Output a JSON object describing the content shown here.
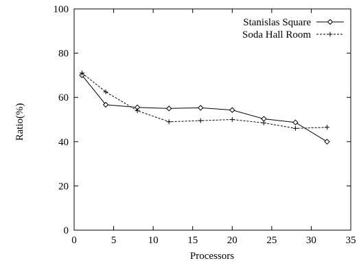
{
  "chart_data": {
    "type": "line",
    "title": "",
    "xlabel": "Processors",
    "ylabel": "Ratio(%)",
    "xlim": [
      0,
      35
    ],
    "ylim": [
      0,
      100
    ],
    "xticks": [
      "0",
      "5",
      "10",
      "15",
      "20",
      "25",
      "30",
      "35"
    ],
    "yticks": [
      "0",
      "20",
      "40",
      "60",
      "80",
      "100"
    ],
    "grid": false,
    "legend_position": "top-right",
    "series": [
      {
        "name": "Stanislas Square",
        "line_style": "solid",
        "marker": "diamond",
        "color": "#000000",
        "x": [
          1,
          4,
          8,
          12,
          16,
          20,
          24,
          28,
          32
        ],
        "y": [
          70,
          56.7,
          55.5,
          55,
          55.3,
          54.3,
          50.3,
          48.7,
          40
        ]
      },
      {
        "name": "Soda Hall Room",
        "line_style": "dashed",
        "marker": "plus",
        "color": "#000000",
        "x": [
          1,
          4,
          8,
          12,
          16,
          20,
          24,
          28,
          32
        ],
        "y": [
          71,
          62.5,
          54,
          49,
          49.5,
          50,
          48.5,
          46,
          46.5
        ]
      }
    ]
  }
}
